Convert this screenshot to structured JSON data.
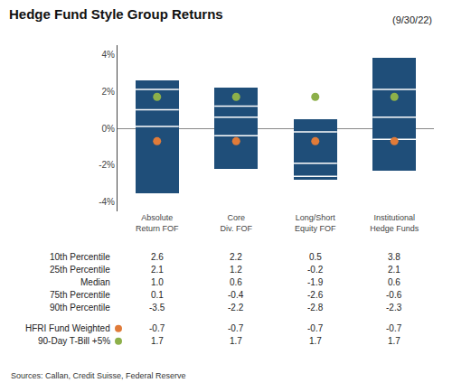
{
  "chart_data": {
    "type": "floating_bar",
    "title": "Hedge Fund Style Group Returns",
    "subtitle": "(9/30/22)",
    "annotations": [
      "Sources: Callan, Credit Suisse, Federal Reserve"
    ],
    "categories": [
      "Absolute\nReturn FOF",
      "Core\nDiv. FOF",
      "Long/Short\nEquity FOF",
      "Institutional\nHedge Funds"
    ],
    "series": [
      {
        "name": "10th Percentile",
        "type": "bar_top",
        "color": "#1F4E79",
        "values": [
          2.6,
          2.2,
          0.5,
          3.8
        ],
        "value_labels": [
          "2.6",
          "2.2",
          "0.5",
          "3.8"
        ]
      },
      {
        "name": "25th Percentile",
        "type": "level",
        "color": "#FFFFFF",
        "values": [
          2.1,
          1.2,
          -0.2,
          2.1
        ],
        "value_labels": [
          "2.1",
          "1.2",
          "-0.2",
          "2.1"
        ]
      },
      {
        "name": "Median",
        "type": "level",
        "color": "#FFFFFF",
        "values": [
          1.0,
          0.6,
          -1.9,
          0.6
        ],
        "value_labels": [
          "1.0",
          "0.6",
          "-1.9",
          "0.6"
        ]
      },
      {
        "name": "75th Percentile",
        "type": "level",
        "color": "#FFFFFF",
        "values": [
          0.1,
          -0.4,
          -2.6,
          -0.6
        ],
        "value_labels": [
          "0.1",
          "-0.4",
          "-2.6",
          "-0.6"
        ]
      },
      {
        "name": "90th Percentile",
        "type": "bar_bottom",
        "color": "#1F4E79",
        "values": [
          -3.5,
          -2.2,
          -2.8,
          -2.3
        ],
        "value_labels": [
          "-3.5",
          "-2.2",
          "-2.8",
          "-2.3"
        ]
      },
      {
        "name": "HFRI Fund Weighted",
        "type": "scatter",
        "color": "#E07B39",
        "marker": "circle",
        "values": [
          -0.7,
          -0.7,
          -0.7,
          -0.7
        ],
        "value_labels": [
          "-0.7",
          "-0.7",
          "-0.7",
          "-0.7"
        ]
      },
      {
        "name": "90-Day T-Bill +5%",
        "type": "scatter",
        "color": "#8DB04A",
        "marker": "circle",
        "values": [
          1.7,
          1.7,
          1.7,
          1.7
        ],
        "value_labels": [
          "1.7",
          "1.7",
          "1.7",
          "1.7"
        ]
      }
    ],
    "ylim": [
      -4.5,
      4.5
    ],
    "yticks": [
      {
        "value": -4,
        "label": "-4%"
      },
      {
        "value": -2,
        "label": "-2%"
      },
      {
        "value": 0,
        "label": "0%"
      },
      {
        "value": 2,
        "label": "2%"
      },
      {
        "value": 4,
        "label": "4%"
      }
    ],
    "grid": false
  }
}
